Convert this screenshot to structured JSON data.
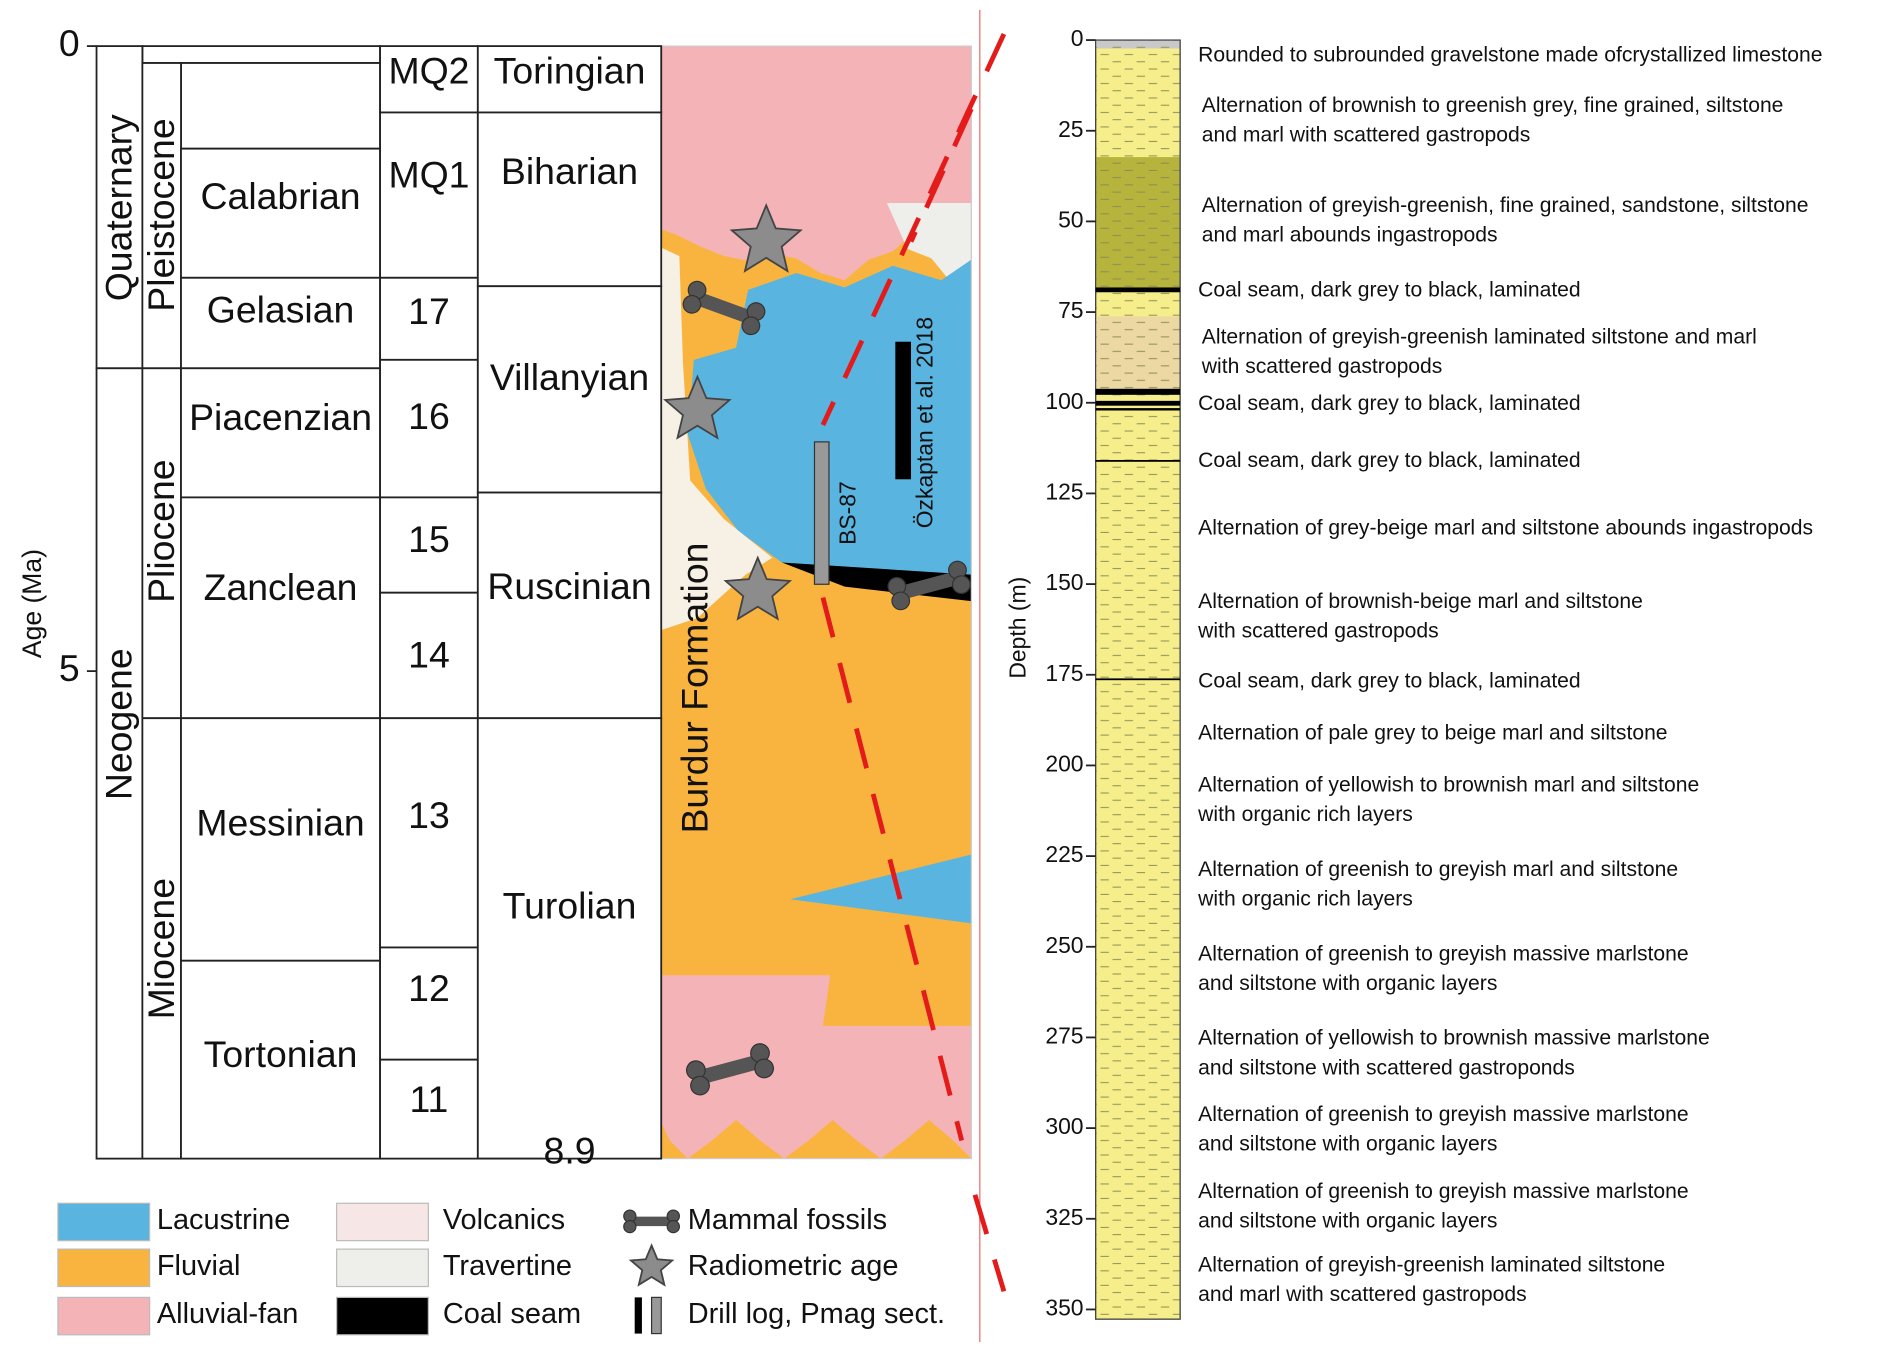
{
  "stratigraphy": {
    "axis_label": "Age (Ma)",
    "ticks": [
      0,
      5,
      8.9
    ],
    "eras": [
      "Quaternary",
      "Neogene"
    ],
    "epochs": [
      "Pleistocene",
      "Pliocene",
      "Miocene"
    ],
    "stages": [
      "Calabrian",
      "Gelasian",
      "Piacenzian",
      "Zanclean",
      "Messinian",
      "Tortonian"
    ],
    "mammal_zones": [
      "MQ2",
      "MQ1",
      "17",
      "16",
      "15",
      "14",
      "13",
      "12",
      "11"
    ],
    "land_mammal_ages": [
      "Toringian",
      "Biharian",
      "Villanyian",
      "Ruscinian",
      "Turolian"
    ],
    "formation": "Burdur Formation",
    "drill_log": "BS-87",
    "pmag_section": "Özkaptan et al. 2018"
  },
  "legend": [
    {
      "label": "Lacustrine",
      "color": "#5ab4e0"
    },
    {
      "label": "Fluvial",
      "color": "#f9b440"
    },
    {
      "label": "Alluvial-fan",
      "color": "#f4b3b6"
    },
    {
      "label": "Volcanics",
      "color": "#f7e6e6"
    },
    {
      "label": "Travertine",
      "color": "#eeeeea"
    },
    {
      "label": "Coal seam",
      "color": "#000000"
    },
    {
      "label": "Mammal fossils"
    },
    {
      "label": "Radiometric age"
    },
    {
      "label": "Drill log, Pmag sect."
    }
  ],
  "log": {
    "axis_label": "Depth (m)",
    "ticks": [
      0,
      25,
      50,
      75,
      100,
      125,
      150,
      175,
      200,
      225,
      250,
      275,
      300,
      325,
      350
    ],
    "descriptions": [
      [
        "Rounded to subrounded gravelstone made ofcrystallized  limestone"
      ],
      [
        "Alternation of brownish to greenish grey, fine grained, siltstone",
        "and marl with scattered gastropods"
      ],
      [
        "Alternation of greyish-greenish, fine grained, sandstone, siltstone",
        "and marl abounds ingastropods"
      ],
      [
        "Coal seam, dark grey to black, laminated"
      ],
      [
        "Alternation of greyish-greenish laminated siltstone and marl",
        "with scattered gastropods"
      ],
      [
        "Coal seam, dark grey to black, laminated"
      ],
      [
        "Coal seam, dark grey to black, laminated"
      ],
      [
        "Alternation of grey-beige marl and siltstone abounds ingastropods"
      ],
      [
        "Alternation of brownish-beige marl and siltstone",
        "with scattered gastropods"
      ],
      [
        "Coal seam, dark grey to black, laminated"
      ],
      [
        "Alternation of pale grey to beige marl and siltstone"
      ],
      [
        "Alternation of yellowish to brownish marl and siltstone",
        "with organic rich layers"
      ],
      [
        "Alternation of greenish to greyish marl and siltstone",
        "with organic rich layers"
      ],
      [
        "Alternation of greenish to greyish massive marlstone",
        "and siltstone with organic layers"
      ],
      [
        "Alternation of yellowish to brownish massive marlstone",
        "and siltstone with scattered gastroponds"
      ],
      [
        "Alternation of greenish to greyish massive marlstone",
        "and siltstone with organic layers"
      ],
      [
        "Alternation of greenish to greyish massive marlstone",
        "and siltstone with organic layers"
      ],
      [
        "Alternation of greyish-greenish laminated siltstone",
        "and marl with scattered gastropods"
      ]
    ]
  }
}
